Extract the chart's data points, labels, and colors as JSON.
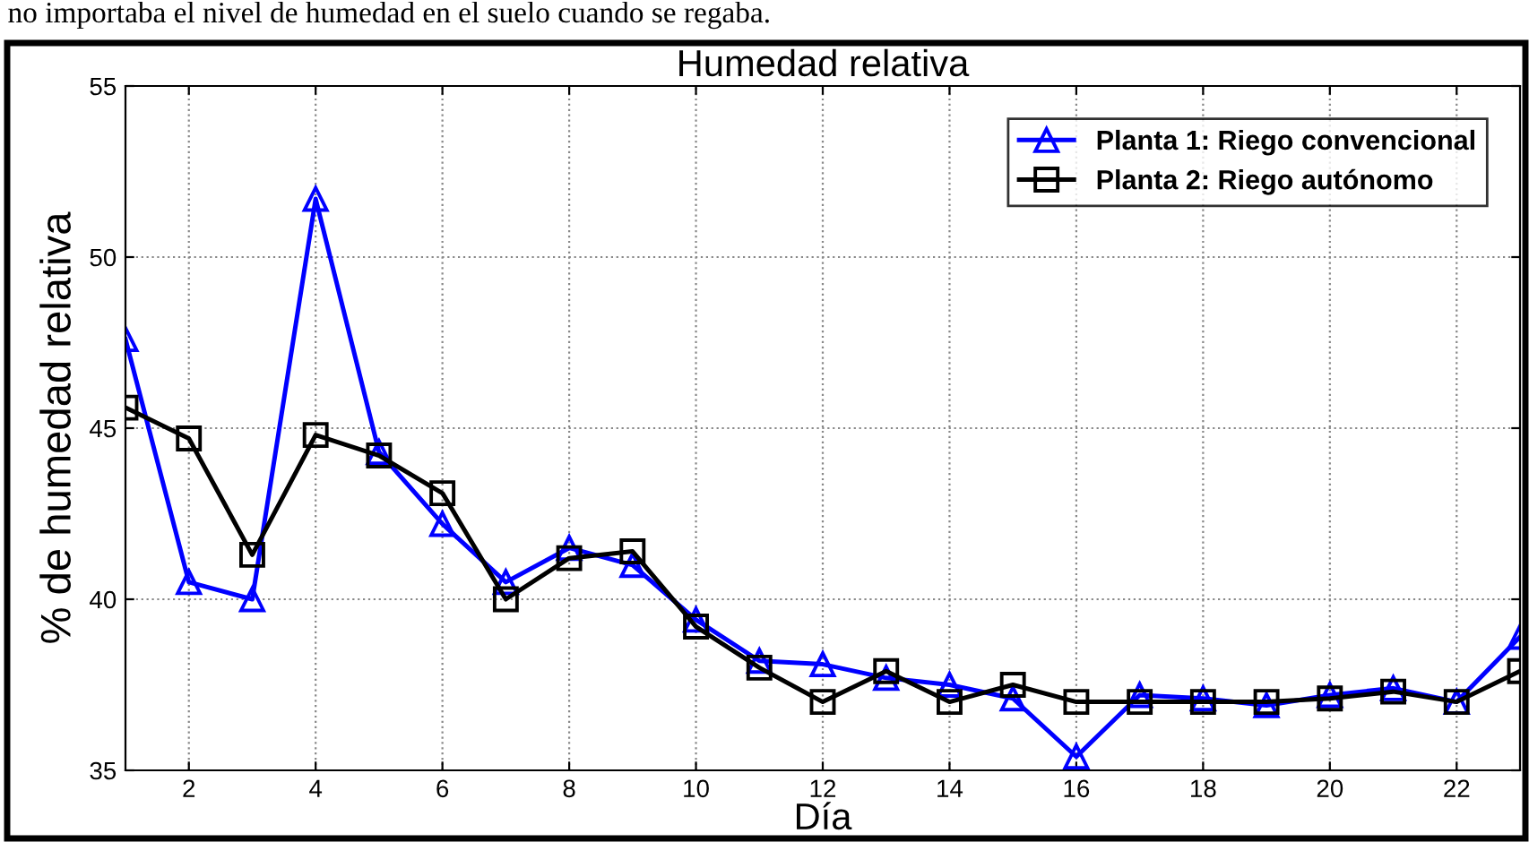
{
  "chart_data": {
    "type": "line",
    "title": "Humedad relativa",
    "xlabel": "Día",
    "ylabel": "% de humedad relativa",
    "annotations": [
      "no importaba el nivel de humedad en el suelo cuando se regaba."
    ],
    "x": [
      1,
      2,
      3,
      4,
      5,
      6,
      7,
      8,
      9,
      10,
      11,
      12,
      13,
      14,
      15,
      16,
      17,
      18,
      19,
      20,
      21,
      22,
      23
    ],
    "series": [
      {
        "name": "Planta 1: Riego convencional",
        "color": "#0000ff",
        "marker": "triangle",
        "values": [
          47.6,
          40.5,
          40.0,
          51.7,
          44.3,
          42.2,
          40.5,
          41.5,
          41.0,
          39.4,
          38.2,
          38.1,
          37.7,
          37.5,
          37.1,
          35.4,
          37.2,
          37.1,
          36.9,
          37.2,
          37.4,
          37.0,
          38.9
        ]
      },
      {
        "name": "Planta 2: Riego autónomo",
        "color": "#000000",
        "marker": "square",
        "values": [
          45.6,
          44.7,
          41.3,
          44.8,
          44.2,
          43.1,
          40.0,
          41.2,
          41.4,
          39.2,
          38.0,
          37.0,
          37.9,
          37.0,
          37.5,
          37.0,
          37.0,
          37.0,
          37.0,
          37.1,
          37.3,
          37.0,
          37.9
        ]
      }
    ],
    "xlim": [
      1,
      23
    ],
    "ylim": [
      35,
      55
    ],
    "xticks": [
      2,
      4,
      6,
      8,
      10,
      12,
      14,
      16,
      18,
      20,
      22
    ],
    "yticks": [
      35,
      40,
      45,
      50,
      55
    ],
    "grid": true,
    "legend": "top right",
    "line_style": "solid"
  }
}
